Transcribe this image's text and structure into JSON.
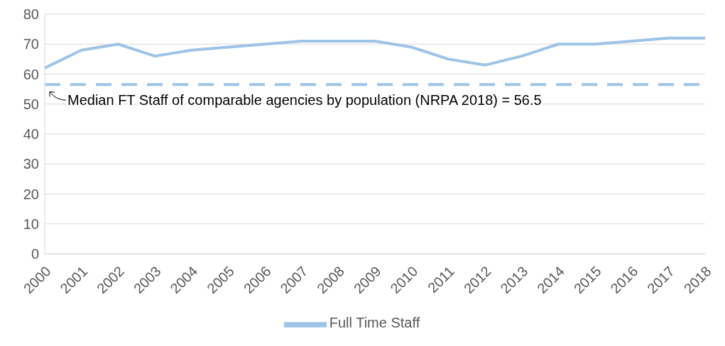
{
  "chart_data": {
    "type": "line",
    "categories": [
      "2000",
      "2001",
      "2002",
      "2003",
      "2004",
      "2005",
      "2006",
      "2007",
      "2008",
      "2009",
      "2010",
      "2011",
      "2012",
      "2013",
      "2014",
      "2015",
      "2016",
      "2017",
      "2018"
    ],
    "series": [
      {
        "name": "Full Time Staff",
        "color": "#9dc3e6",
        "values": [
          62,
          68,
          70,
          66,
          68,
          69,
          70,
          71,
          71,
          71,
          69,
          65,
          63,
          66,
          70,
          70,
          71,
          72,
          72
        ]
      }
    ],
    "ylim": [
      0,
      80
    ],
    "yticks": [
      0,
      10,
      20,
      30,
      40,
      50,
      60,
      70,
      80
    ],
    "grid": "y",
    "legend": "bottom",
    "marker": "none",
    "line_style": "solid",
    "ref_lines": [
      {
        "axis": "y",
        "value": 56.5,
        "color": "#9dc3e6",
        "line_style": "dashed"
      }
    ],
    "annotations": [
      {
        "text": "Median FT Staff of comparable agencies by population (NRPA 2018) = 56.5",
        "x": "2000",
        "y": 56.5
      }
    ]
  }
}
